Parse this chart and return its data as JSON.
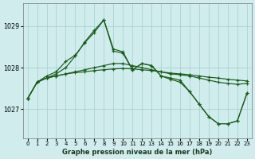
{
  "title": "Graphe pression niveau de la mer (hPa)",
  "bg_color": "#d0ecec",
  "grid_color": "#a8d4d4",
  "line_color": "#1a5c1a",
  "x_ticks": [
    0,
    1,
    2,
    3,
    4,
    5,
    6,
    7,
    8,
    9,
    10,
    11,
    12,
    13,
    14,
    15,
    16,
    17,
    18,
    19,
    20,
    21,
    22,
    23
  ],
  "y_ticks": [
    1027,
    1028,
    1029
  ],
  "ylim": [
    1026.3,
    1029.55
  ],
  "xlim": [
    -0.5,
    23.5
  ],
  "series": [
    [
      1027.25,
      1027.65,
      1027.75,
      1027.8,
      1027.85,
      1027.88,
      1027.9,
      1027.93,
      1027.95,
      1027.97,
      1027.98,
      1027.97,
      1027.95,
      1027.93,
      1027.9,
      1027.87,
      1027.85,
      1027.83,
      1027.8,
      1027.77,
      1027.75,
      1027.72,
      1027.7,
      1027.68
    ],
    [
      1027.25,
      1027.65,
      1027.75,
      1027.8,
      1027.85,
      1027.9,
      1027.95,
      1028.0,
      1028.05,
      1028.1,
      1028.1,
      1028.05,
      1028.0,
      1027.95,
      1027.9,
      1027.85,
      1027.83,
      1027.8,
      1027.75,
      1027.7,
      1027.65,
      1027.62,
      1027.6,
      1027.62
    ],
    [
      1027.25,
      1027.65,
      1027.8,
      1027.9,
      1028.15,
      1028.3,
      1028.6,
      1028.85,
      1029.15,
      1028.4,
      1028.35,
      1027.95,
      1028.1,
      1028.05,
      1027.8,
      1027.75,
      1027.7,
      1027.42,
      1027.12,
      1026.82,
      1026.65,
      1026.65,
      1026.72,
      1027.38
    ],
    [
      1027.25,
      1027.65,
      1027.75,
      1027.85,
      1028.0,
      1028.28,
      1028.62,
      1028.9,
      1029.15,
      1028.45,
      1028.38,
      1027.95,
      1028.1,
      1028.05,
      1027.8,
      1027.72,
      1027.65,
      1027.42,
      1027.12,
      1026.82,
      1026.65,
      1026.65,
      1026.72,
      1027.38
    ]
  ]
}
